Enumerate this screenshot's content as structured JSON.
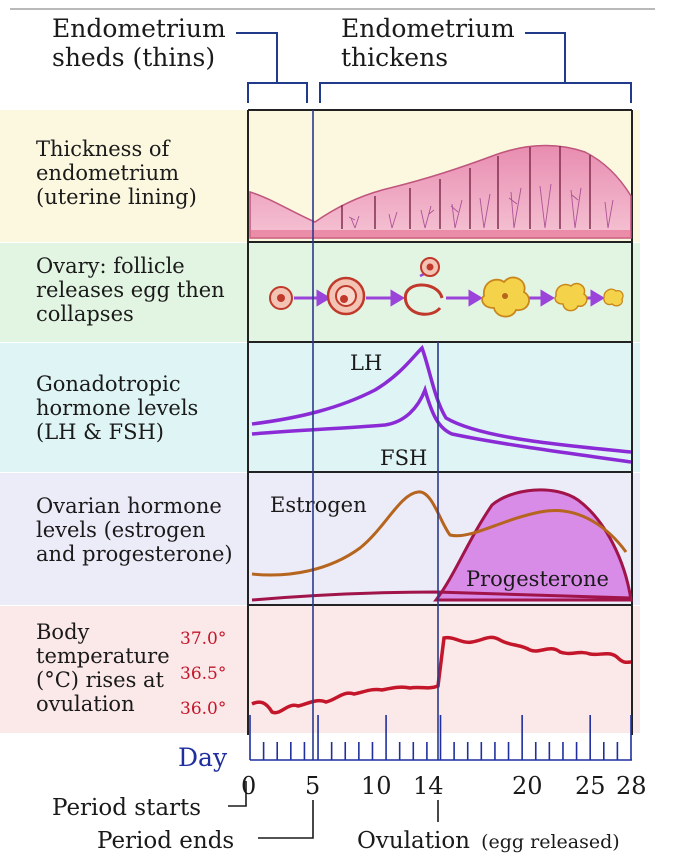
{
  "header": {
    "sheds_line1": "Endometrium",
    "sheds_line2": "sheds (thins)",
    "thickens_line1": "Endometrium",
    "thickens_line2": "thickens"
  },
  "rows": [
    {
      "lines": [
        "Thickness of",
        "endometrium",
        "(uterine lining)"
      ],
      "color": "#fbf8df"
    },
    {
      "lines": [
        "Ovary: follicle",
        "releases egg then",
        "collapses"
      ],
      "color": "#e2f4e2"
    },
    {
      "lines": [
        "Gonadotropic",
        "hormone levels",
        "(LH & FSH)"
      ],
      "color": "#dff4f4"
    },
    {
      "lines": [
        "Ovarian hormone",
        "levels (estrogen",
        "and progesterone)"
      ],
      "color": "#ecebf8"
    },
    {
      "lines": [
        "Body",
        "temperature",
        "(°C) rises at",
        "ovulation"
      ],
      "color": "#fbe8e8"
    }
  ],
  "curve_labels": {
    "lh": "LH",
    "fsh": "FSH",
    "estrogen": "Estrogen",
    "progesterone": "Progesterone"
  },
  "temperature_ticks": [
    "37.0°",
    "36.5°",
    "36.0°"
  ],
  "day_axis": {
    "label": "Day",
    "ticks": [
      "0",
      "5",
      "10",
      "14",
      "20",
      "25",
      "28"
    ]
  },
  "annotations": {
    "period_starts": "Period starts",
    "period_ends": "Period ends",
    "ovulation": "Ovulation",
    "ovulation_note": "(egg released)"
  },
  "colors": {
    "hormone_purple": "#8a2bd6",
    "estrogen_brown": "#b5651d",
    "progesterone_fill": "#d98be8",
    "progesterone_line": "#a0144a",
    "temperature_red": "#c4162a",
    "endometrium_pink": "#e58aa8",
    "day_blue": "#1f2f9f"
  }
}
